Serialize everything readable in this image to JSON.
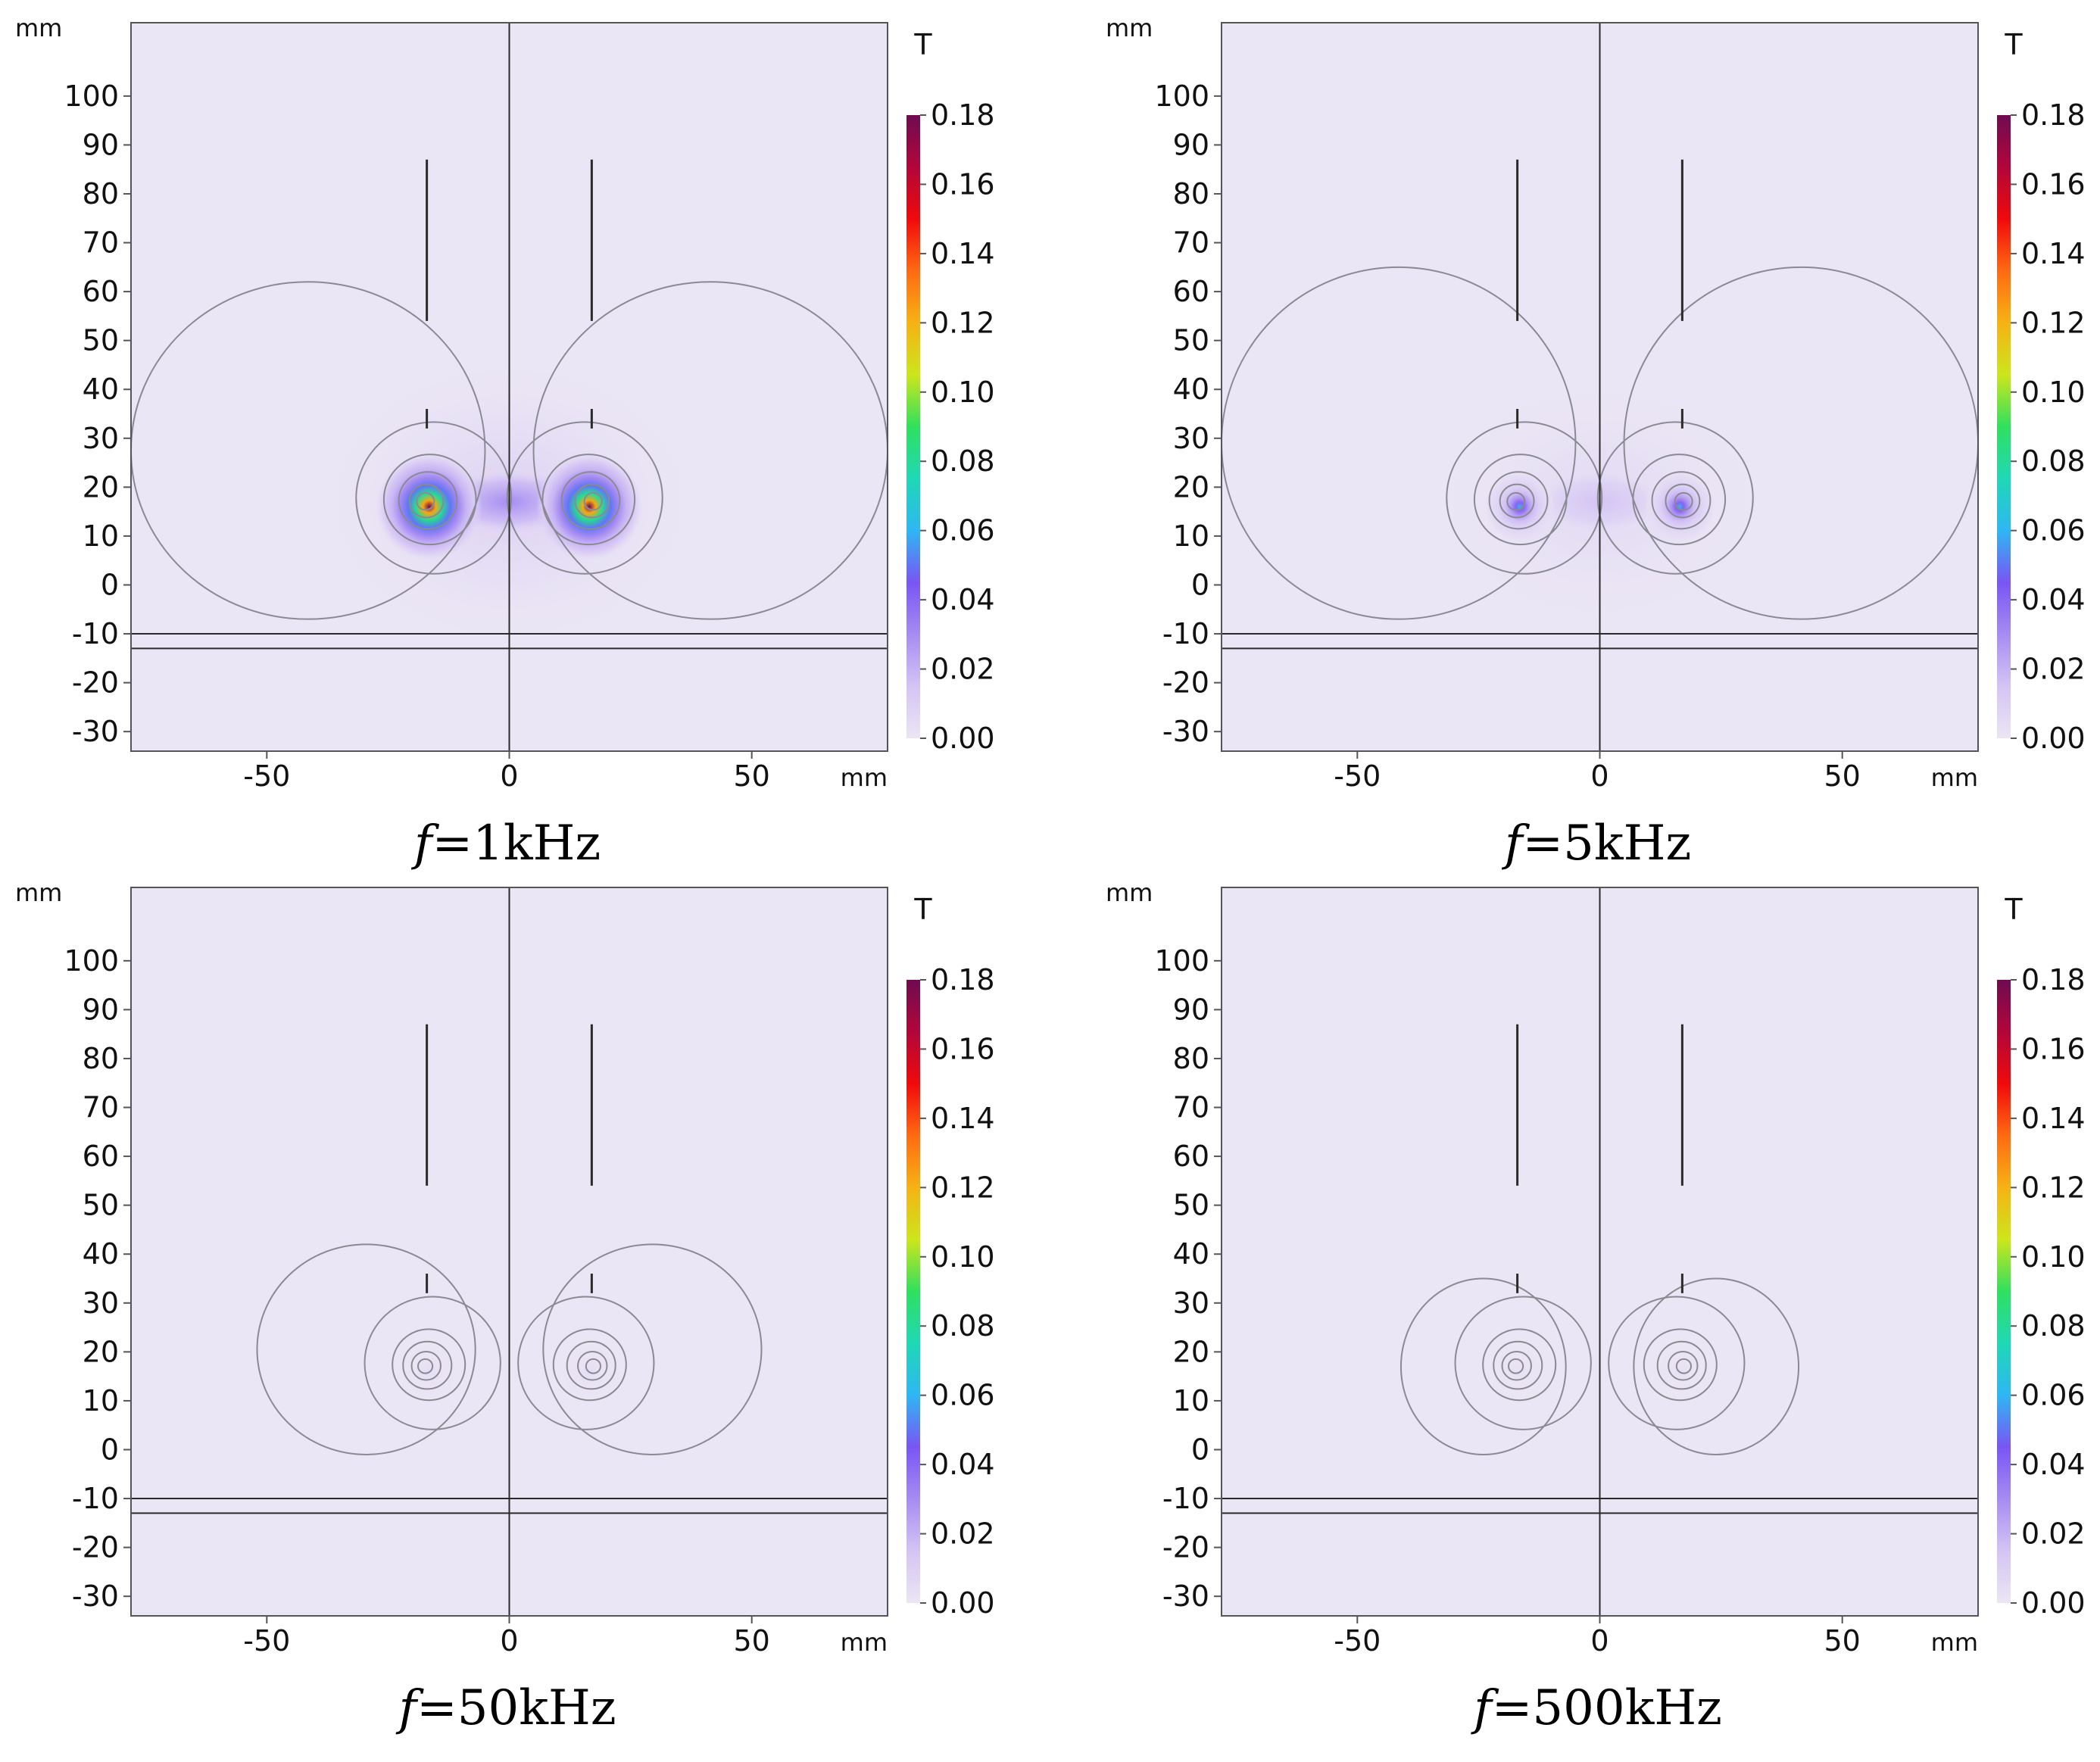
{
  "figure": {
    "colormap": [
      "#ebe6f4",
      "#d4c4f4",
      "#a58cf2",
      "#7a55f4",
      "#2fb6f4",
      "#1fd8b6",
      "#2fe05e",
      "#cce61c",
      "#f6b214",
      "#ff6a12",
      "#f00a0a",
      "#b2063a",
      "#6f0b52"
    ],
    "field_color": "#ebe6f5",
    "contour_color": "#8a8a93",
    "geometry_color": "#2a2a2a"
  },
  "chart_data": [
    {
      "type": "heatmap",
      "caption_var": "f",
      "caption_value": "=1kHz",
      "quantity_unit": "T",
      "axis_unit": "mm",
      "xlim": [
        -78,
        78
      ],
      "ylim": [
        -34,
        115
      ],
      "xticks": [
        "-50",
        "0",
        "50"
      ],
      "xtick_values": [
        -50,
        0,
        50
      ],
      "yticks": [
        "100",
        "90",
        "80",
        "70",
        "60",
        "50",
        "40",
        "30",
        "20",
        "10",
        "0",
        "-10",
        "-20",
        "-30"
      ],
      "ytick_values": [
        100,
        90,
        80,
        70,
        60,
        50,
        40,
        30,
        20,
        10,
        0,
        -10,
        -20,
        -30
      ],
      "colorbar_ticks": [
        "0.18",
        "0.16",
        "0.14",
        "0.12",
        "0.10",
        "0.08",
        "0.06",
        "0.04",
        "0.02",
        "0.00"
      ],
      "colorbar_tick_values": [
        0.18,
        0.16,
        0.14,
        0.12,
        0.1,
        0.08,
        0.06,
        0.04,
        0.02,
        0.0
      ],
      "colorbar_range": [
        0,
        0.18
      ],
      "hotspots": [
        {
          "x": -16.5,
          "y": 16,
          "peak": 0.18,
          "spread": 4.2
        },
        {
          "x": 16.5,
          "y": 16,
          "peak": 0.18,
          "spread": 4.2
        }
      ],
      "bridge": {
        "x": 0,
        "y": 17,
        "level": 0.03,
        "half_width": 16,
        "half_height": 7
      },
      "glow": {
        "level": 0.012,
        "half_width": 42,
        "half_height": 32
      },
      "contour_sets": [
        {
          "cx": -17.5,
          "cy": 17,
          "radii": [
            1.8,
            3.5,
            6,
            9.5,
            16
          ],
          "outer": {
            "x1": -78,
            "y1": -7,
            "x2": -5,
            "y2": 62
          }
        },
        {
          "cx": 17.5,
          "cy": 17,
          "radii": [
            1.8,
            3.5,
            6,
            9.5,
            16
          ],
          "outer": {
            "x1": 5,
            "y1": -7,
            "x2": 78,
            "y2": 62
          }
        }
      ]
    },
    {
      "type": "heatmap",
      "caption_var": "f",
      "caption_value": "=5kHz",
      "quantity_unit": "T",
      "axis_unit": "mm",
      "xlim": [
        -78,
        78
      ],
      "ylim": [
        -34,
        115
      ],
      "xticks": [
        "-50",
        "0",
        "50"
      ],
      "xtick_values": [
        -50,
        0,
        50
      ],
      "yticks": [
        "100",
        "90",
        "80",
        "70",
        "60",
        "50",
        "40",
        "30",
        "20",
        "10",
        "0",
        "-10",
        "-20",
        "-30"
      ],
      "ytick_values": [
        100,
        90,
        80,
        70,
        60,
        50,
        40,
        30,
        20,
        10,
        0,
        -10,
        -20,
        -30
      ],
      "colorbar_ticks": [
        "0.18",
        "0.16",
        "0.14",
        "0.12",
        "0.10",
        "0.08",
        "0.06",
        "0.04",
        "0.02",
        "0.00"
      ],
      "colorbar_tick_values": [
        0.18,
        0.16,
        0.14,
        0.12,
        0.1,
        0.08,
        0.06,
        0.04,
        0.02,
        0.0
      ],
      "colorbar_range": [
        0,
        0.18
      ],
      "hotspots": [
        {
          "x": -16.5,
          "y": 16,
          "peak": 0.06,
          "spread": 2.8
        },
        {
          "x": 16.5,
          "y": 16,
          "peak": 0.06,
          "spread": 2.8
        }
      ],
      "bridge": {
        "x": 0,
        "y": 17,
        "level": 0.015,
        "half_width": 15,
        "half_height": 7
      },
      "glow": {
        "level": 0.007,
        "half_width": 38,
        "half_height": 28
      },
      "contour_sets": [
        {
          "cx": -17.5,
          "cy": 17,
          "radii": [
            1.8,
            3.5,
            6,
            9.5,
            16
          ],
          "outer": {
            "x1": -78,
            "y1": -7,
            "x2": -5,
            "y2": 65
          }
        },
        {
          "cx": 17.5,
          "cy": 17,
          "radii": [
            1.8,
            3.5,
            6,
            9.5,
            16
          ],
          "outer": {
            "x1": 5,
            "y1": -7,
            "x2": 78,
            "y2": 65
          }
        }
      ]
    },
    {
      "type": "heatmap",
      "caption_var": "f",
      "caption_value": "=50kHz",
      "quantity_unit": "T",
      "axis_unit": "mm",
      "xlim": [
        -78,
        78
      ],
      "ylim": [
        -34,
        115
      ],
      "xticks": [
        "-50",
        "0",
        "50"
      ],
      "xtick_values": [
        -50,
        0,
        50
      ],
      "yticks": [
        "100",
        "90",
        "80",
        "70",
        "60",
        "50",
        "40",
        "30",
        "20",
        "10",
        "0",
        "-10",
        "-20",
        "-30"
      ],
      "ytick_values": [
        100,
        90,
        80,
        70,
        60,
        50,
        40,
        30,
        20,
        10,
        0,
        -10,
        -20,
        -30
      ],
      "colorbar_ticks": [
        "0.18",
        "0.16",
        "0.14",
        "0.12",
        "0.10",
        "0.08",
        "0.06",
        "0.04",
        "0.02",
        "0.00"
      ],
      "colorbar_tick_values": [
        0.18,
        0.16,
        0.14,
        0.12,
        0.1,
        0.08,
        0.06,
        0.04,
        0.02,
        0.0
      ],
      "colorbar_range": [
        0,
        0.18
      ],
      "hotspots": [
        {
          "x": -16.5,
          "y": 16,
          "peak": 0.004,
          "spread": 2.5
        },
        {
          "x": 16.5,
          "y": 16,
          "peak": 0.004,
          "spread": 2.5
        }
      ],
      "bridge": {
        "x": 0,
        "y": 17,
        "level": 0,
        "half_width": 12,
        "half_height": 6
      },
      "glow": {
        "level": 0,
        "half_width": 30,
        "half_height": 20
      },
      "contour_sets": [
        {
          "cx": -17.5,
          "cy": 17,
          "radii": [
            1.5,
            3,
            5,
            7.5,
            14
          ],
          "outer": {
            "x1": -52,
            "y1": -1,
            "x2": -7,
            "y2": 42
          }
        },
        {
          "cx": 17.5,
          "cy": 17,
          "radii": [
            1.5,
            3,
            5,
            7.5,
            14
          ],
          "outer": {
            "x1": 7,
            "y1": -1,
            "x2": 52,
            "y2": 42
          }
        }
      ]
    },
    {
      "type": "heatmap",
      "caption_var": "f",
      "caption_value": "=500kHz",
      "quantity_unit": "T",
      "axis_unit": "mm",
      "xlim": [
        -78,
        78
      ],
      "ylim": [
        -34,
        115
      ],
      "xticks": [
        "-50",
        "0",
        "50"
      ],
      "xtick_values": [
        -50,
        0,
        50
      ],
      "yticks": [
        "100",
        "90",
        "80",
        "70",
        "60",
        "50",
        "40",
        "30",
        "20",
        "10",
        "0",
        "-10",
        "-20",
        "-30"
      ],
      "ytick_values": [
        100,
        90,
        80,
        70,
        60,
        50,
        40,
        30,
        20,
        10,
        0,
        -10,
        -20,
        -30
      ],
      "colorbar_ticks": [
        "0.18",
        "0.16",
        "0.14",
        "0.12",
        "0.10",
        "0.08",
        "0.06",
        "0.04",
        "0.02",
        "0.00"
      ],
      "colorbar_tick_values": [
        0.18,
        0.16,
        0.14,
        0.12,
        0.1,
        0.08,
        0.06,
        0.04,
        0.02,
        0.0
      ],
      "colorbar_range": [
        0,
        0.18
      ],
      "hotspots": [
        {
          "x": -16.5,
          "y": 16,
          "peak": 0.003,
          "spread": 2.5
        },
        {
          "x": 16.5,
          "y": 16,
          "peak": 0.003,
          "spread": 2.5
        }
      ],
      "bridge": {
        "x": 0,
        "y": 17,
        "level": 0,
        "half_width": 12,
        "half_height": 6
      },
      "glow": {
        "level": 0,
        "half_width": 30,
        "half_height": 20
      },
      "contour_sets": [
        {
          "cx": -17.5,
          "cy": 17,
          "radii": [
            1.5,
            3,
            5,
            7.5,
            14
          ],
          "outer": {
            "x1": -41,
            "y1": -1,
            "x2": -7,
            "y2": 35
          }
        },
        {
          "cx": 17.5,
          "cy": 17,
          "radii": [
            1.5,
            3,
            5,
            7.5,
            14
          ],
          "outer": {
            "x1": 7,
            "y1": -1,
            "x2": 41,
            "y2": 35
          }
        }
      ]
    }
  ]
}
